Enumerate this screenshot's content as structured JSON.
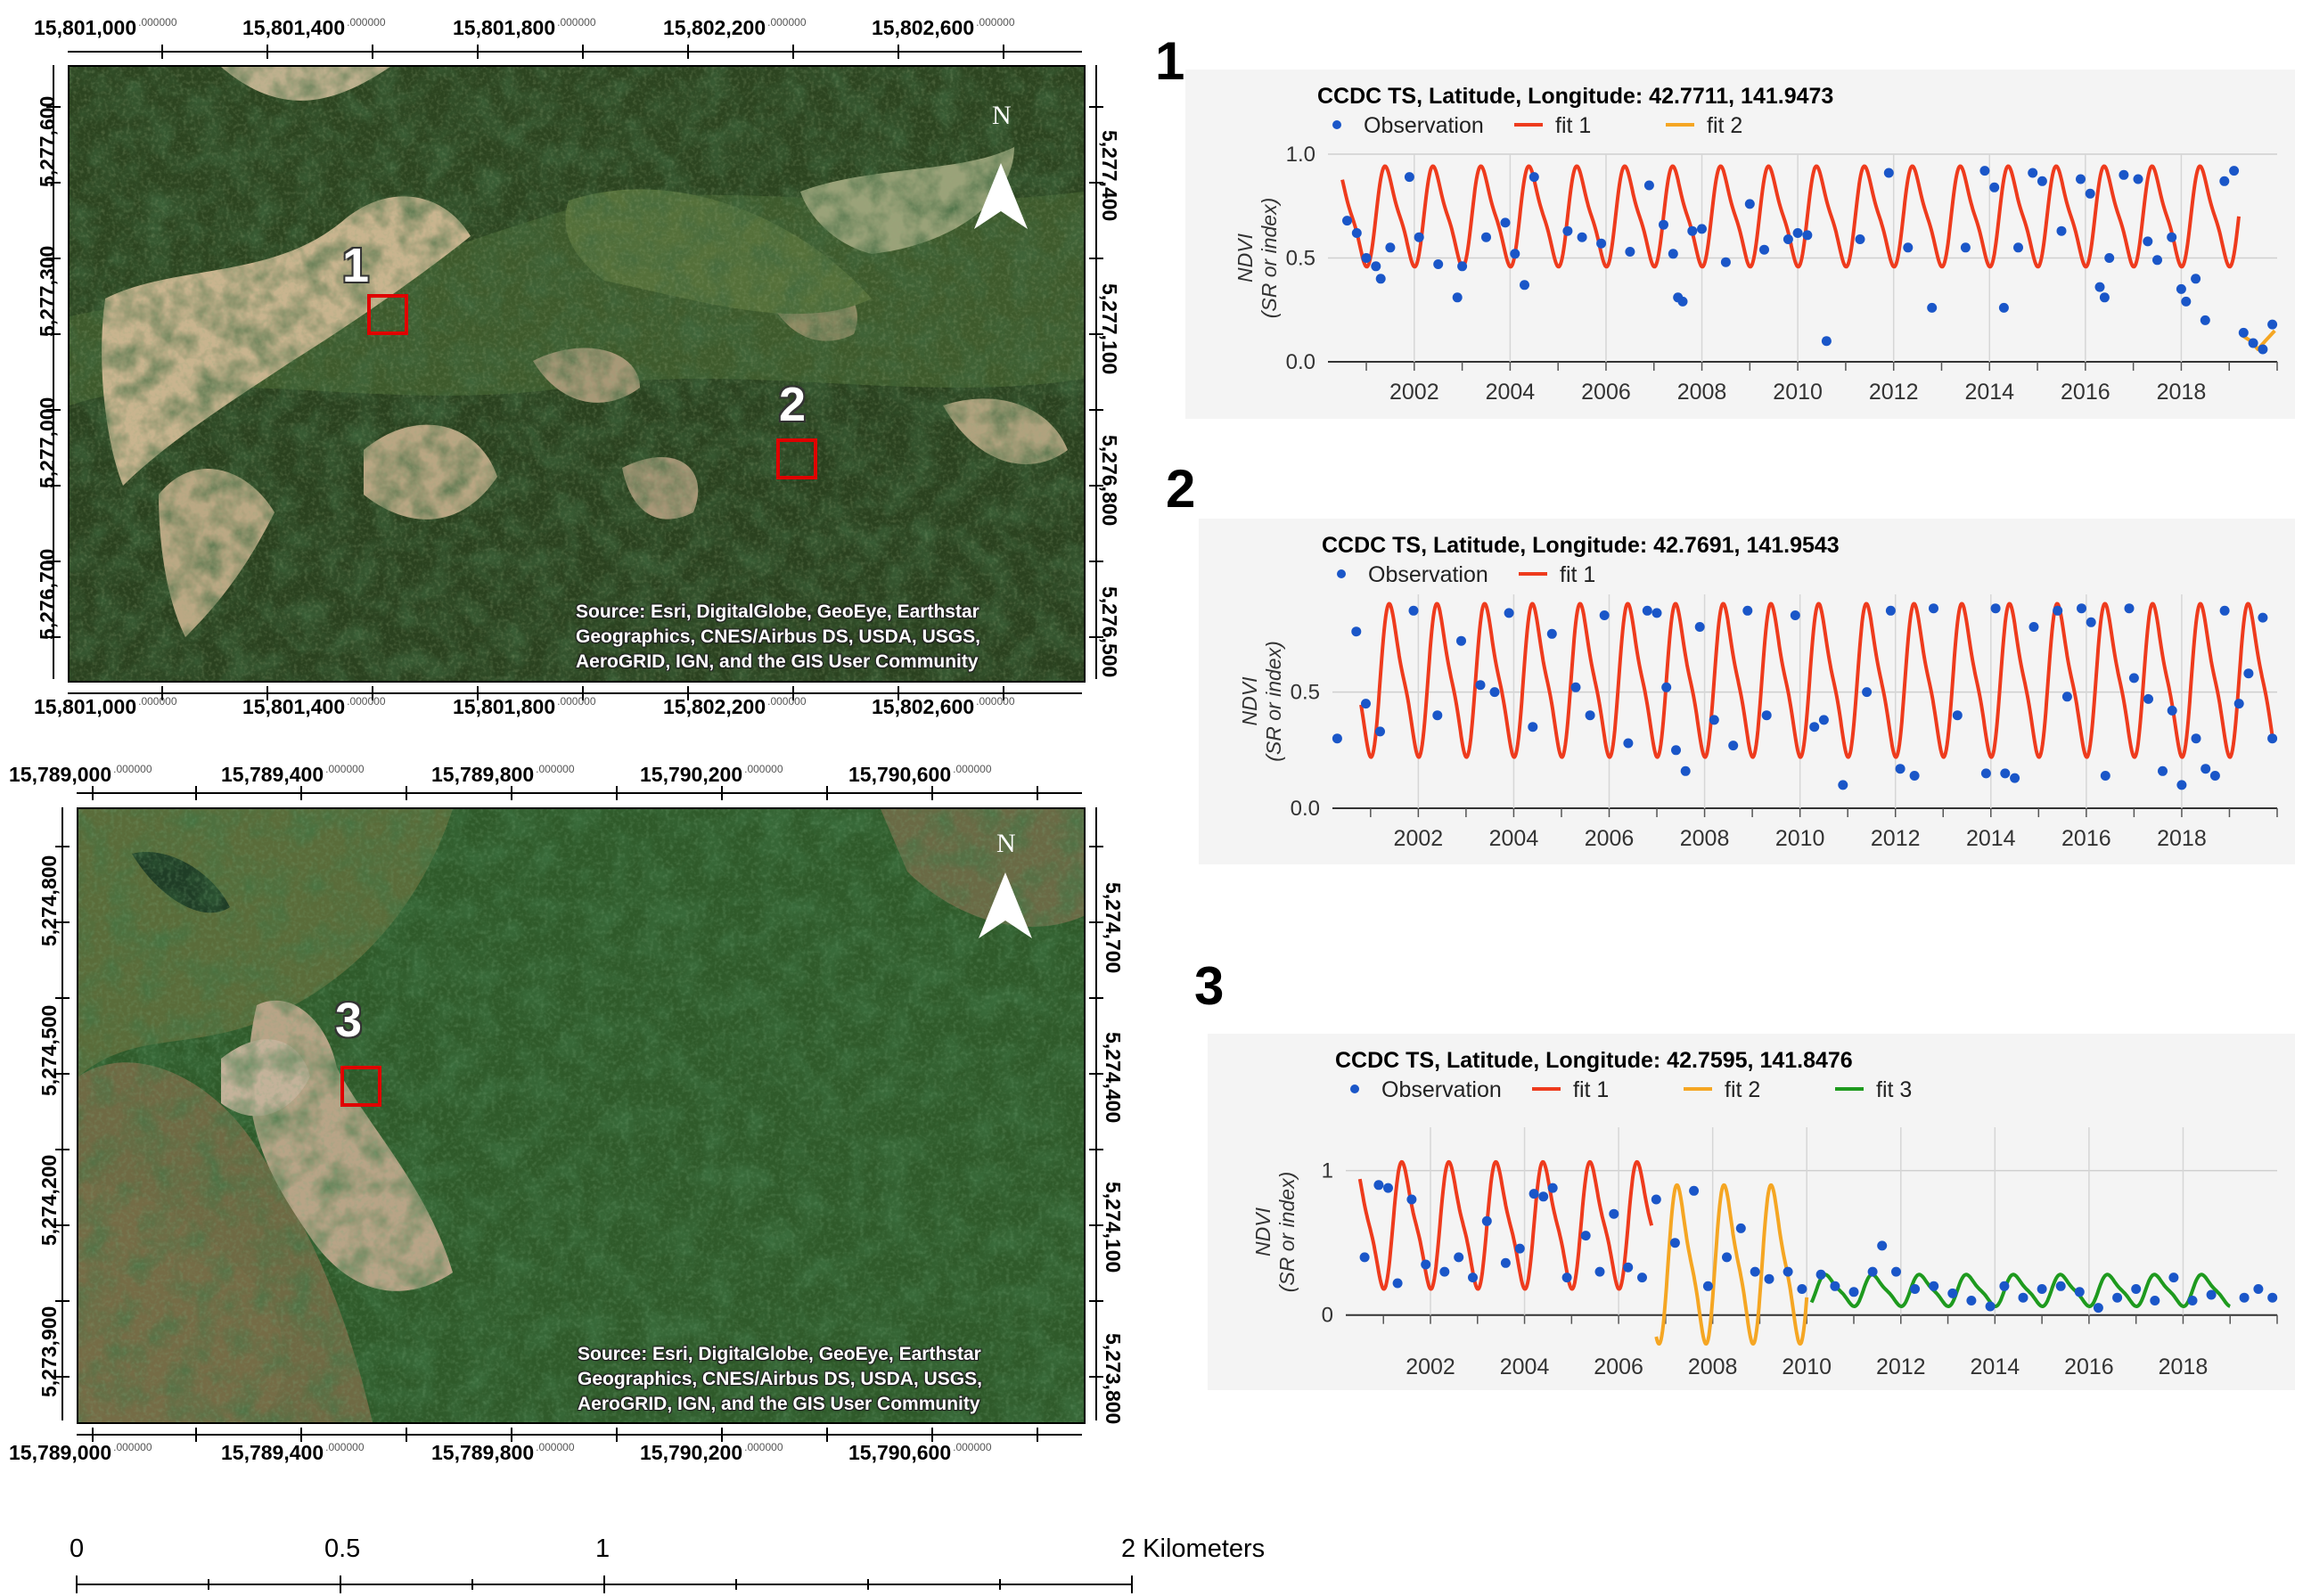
{
  "map1": {
    "x_coords_top": [
      "15,801,000",
      "15,801,400",
      "15,801,800",
      "15,802,200",
      "15,802,600"
    ],
    "x_coords_bottom": [
      "15,801,000",
      "15,801,400",
      "15,801,800",
      "15,802,200",
      "15,802,600"
    ],
    "x_decimal": ".000000",
    "y_coords_left": [
      "5,277,600",
      "5,277,300",
      "5,277,000",
      "5,276,700"
    ],
    "y_coords_right": [
      "5,277,400",
      "5,277,100",
      "5,276,800",
      "5,276,500"
    ],
    "north": "N",
    "site_label": "1",
    "source": [
      "Source: Esri, DigitalGlobe, GeoEye, Earthstar",
      "Geographics, CNES/Airbus DS, USDA, USGS,",
      "AeroGRID, IGN, and the GIS User Community"
    ]
  },
  "map1_site2_label": "2",
  "map2": {
    "x_coords_top": [
      "15,789,000",
      "15,789,400",
      "15,789,800",
      "15,790,200",
      "15,790,600"
    ],
    "x_coords_bottom": [
      "15,789,000",
      "15,789,400",
      "15,789,800",
      "15,790,200",
      "15,790,600"
    ],
    "x_decimal": ".000000",
    "y_coords_left": [
      "5,274,800",
      "5,274,500",
      "5,274,200",
      "5,273,900"
    ],
    "y_coords_right": [
      "5,274,700",
      "5,274,400",
      "5,274,100",
      "5,273,800"
    ],
    "north": "N",
    "site_label": "3",
    "source": [
      "Source: Esri, DigitalGlobe, GeoEye, Earthstar",
      "Geographics, CNES/Airbus DS, USDA, USGS,",
      "AeroGRID, IGN, and the GIS User Community"
    ]
  },
  "scale_bar": {
    "labels": [
      "0",
      "0.5",
      "1",
      "2 Kilometers"
    ]
  },
  "panel_numbers": [
    "1",
    "2",
    "3"
  ],
  "chart_data": [
    {
      "type": "scatter",
      "title": "CCDC TS, Latitude, Longitude: 42.7711, 141.9473",
      "ylabel": "NDVI",
      "ylabel2": "(SR or index)",
      "xlim": [
        2000.2,
        2020.0
      ],
      "ylim": [
        0,
        1
      ],
      "y_ticks": [
        "0.0",
        "0.5",
        "1.0"
      ],
      "y_tick_values": [
        0,
        0.5,
        1.0
      ],
      "x_ticks": [
        "2002",
        "2004",
        "2006",
        "2008",
        "2010",
        "2012",
        "2014",
        "2016",
        "2018"
      ],
      "x_tick_values": [
        2002,
        2004,
        2006,
        2008,
        2010,
        2012,
        2014,
        2016,
        2018
      ],
      "colors": {
        "observation": "#1a56c8",
        "fit1": "#ee3b1d",
        "fit2": "#f5a623"
      },
      "legend": [
        "Observation",
        "fit 1",
        "fit 2"
      ],
      "fits": [
        {
          "name": "fit 1",
          "start": 2000.5,
          "end": 2019.2,
          "mean": 0.7,
          "amp": 0.22,
          "phase": 0.2
        },
        {
          "name": "fit 2",
          "start": 2019.25,
          "end": 2019.95,
          "points": [
            [
              2019.25,
              0.13
            ],
            [
              2019.45,
              0.1
            ],
            [
              2019.6,
              0.06
            ],
            [
              2019.75,
              0.1
            ],
            [
              2019.95,
              0.15
            ]
          ]
        }
      ],
      "observations": [
        [
          2000.6,
          0.68
        ],
        [
          2000.8,
          0.62
        ],
        [
          2001.0,
          0.5
        ],
        [
          2001.2,
          0.46
        ],
        [
          2001.3,
          0.4
        ],
        [
          2001.5,
          0.55
        ],
        [
          2001.9,
          0.89
        ],
        [
          2002.1,
          0.6
        ],
        [
          2002.5,
          0.47
        ],
        [
          2002.9,
          0.31
        ],
        [
          2003.0,
          0.46
        ],
        [
          2003.5,
          0.6
        ],
        [
          2003.9,
          0.67
        ],
        [
          2004.1,
          0.52
        ],
        [
          2004.3,
          0.37
        ],
        [
          2004.5,
          0.89
        ],
        [
          2005.2,
          0.63
        ],
        [
          2005.5,
          0.6
        ],
        [
          2005.9,
          0.57
        ],
        [
          2006.5,
          0.53
        ],
        [
          2006.9,
          0.85
        ],
        [
          2007.2,
          0.66
        ],
        [
          2007.4,
          0.52
        ],
        [
          2007.5,
          0.31
        ],
        [
          2007.6,
          0.29
        ],
        [
          2007.8,
          0.63
        ],
        [
          2008.0,
          0.64
        ],
        [
          2008.5,
          0.48
        ],
        [
          2009.0,
          0.76
        ],
        [
          2009.3,
          0.54
        ],
        [
          2009.8,
          0.59
        ],
        [
          2010.0,
          0.62
        ],
        [
          2010.2,
          0.61
        ],
        [
          2010.6,
          0.1
        ],
        [
          2011.3,
          0.59
        ],
        [
          2011.9,
          0.91
        ],
        [
          2012.3,
          0.55
        ],
        [
          2012.8,
          0.26
        ],
        [
          2013.5,
          0.55
        ],
        [
          2013.9,
          0.92
        ],
        [
          2014.1,
          0.84
        ],
        [
          2014.3,
          0.26
        ],
        [
          2014.6,
          0.55
        ],
        [
          2014.9,
          0.91
        ],
        [
          2015.1,
          0.87
        ],
        [
          2015.5,
          0.63
        ],
        [
          2015.9,
          0.88
        ],
        [
          2016.1,
          0.81
        ],
        [
          2016.3,
          0.36
        ],
        [
          2016.4,
          0.31
        ],
        [
          2016.5,
          0.5
        ],
        [
          2016.8,
          0.9
        ],
        [
          2017.1,
          0.88
        ],
        [
          2017.3,
          0.58
        ],
        [
          2017.5,
          0.49
        ],
        [
          2017.8,
          0.6
        ],
        [
          2018.0,
          0.35
        ],
        [
          2018.1,
          0.29
        ],
        [
          2018.3,
          0.4
        ],
        [
          2018.5,
          0.2
        ],
        [
          2018.9,
          0.87
        ],
        [
          2019.1,
          0.92
        ],
        [
          2019.3,
          0.14
        ],
        [
          2019.5,
          0.09
        ],
        [
          2019.7,
          0.06
        ],
        [
          2019.9,
          0.18
        ]
      ]
    },
    {
      "type": "scatter",
      "title": "CCDC TS, Latitude, Longitude: 42.7691, 141.9543",
      "ylabel": "NDVI",
      "ylabel2": "(SR or index)",
      "xlim": [
        2000.2,
        2020.0
      ],
      "ylim": [
        0,
        0.92
      ],
      "y_ticks": [
        "0.0",
        "0.5"
      ],
      "y_tick_values": [
        0,
        0.5
      ],
      "x_ticks": [
        "2002",
        "2004",
        "2006",
        "2008",
        "2010",
        "2012",
        "2014",
        "2016",
        "2018"
      ],
      "x_tick_values": [
        2002,
        2004,
        2006,
        2008,
        2010,
        2012,
        2014,
        2016,
        2018
      ],
      "colors": {
        "observation": "#1a56c8",
        "fit1": "#ee3b1d"
      },
      "legend": [
        "Observation",
        "fit 1"
      ],
      "fits": [
        {
          "name": "fit 1",
          "start": 2000.8,
          "end": 2019.9,
          "mean": 0.55,
          "amp": 0.3,
          "phase": 0.2
        }
      ],
      "observations": [
        [
          2000.3,
          0.3
        ],
        [
          2000.7,
          0.76
        ],
        [
          2000.9,
          0.45
        ],
        [
          2001.2,
          0.33
        ],
        [
          2001.9,
          0.85
        ],
        [
          2002.4,
          0.4
        ],
        [
          2002.9,
          0.72
        ],
        [
          2003.3,
          0.53
        ],
        [
          2003.6,
          0.5
        ],
        [
          2003.9,
          0.84
        ],
        [
          2004.4,
          0.35
        ],
        [
          2004.8,
          0.75
        ],
        [
          2005.3,
          0.52
        ],
        [
          2005.6,
          0.4
        ],
        [
          2005.9,
          0.83
        ],
        [
          2006.4,
          0.28
        ],
        [
          2006.8,
          0.85
        ],
        [
          2007.0,
          0.84
        ],
        [
          2007.2,
          0.52
        ],
        [
          2007.4,
          0.25
        ],
        [
          2007.6,
          0.16
        ],
        [
          2007.9,
          0.78
        ],
        [
          2008.2,
          0.38
        ],
        [
          2008.6,
          0.27
        ],
        [
          2008.9,
          0.85
        ],
        [
          2009.3,
          0.4
        ],
        [
          2009.9,
          0.83
        ],
        [
          2010.3,
          0.35
        ],
        [
          2010.5,
          0.38
        ],
        [
          2010.9,
          0.1
        ],
        [
          2011.4,
          0.5
        ],
        [
          2011.9,
          0.85
        ],
        [
          2012.1,
          0.17
        ],
        [
          2012.4,
          0.14
        ],
        [
          2012.8,
          0.86
        ],
        [
          2013.3,
          0.4
        ],
        [
          2013.9,
          0.15
        ],
        [
          2014.1,
          0.86
        ],
        [
          2014.3,
          0.15
        ],
        [
          2014.5,
          0.13
        ],
        [
          2014.9,
          0.78
        ],
        [
          2015.4,
          0.85
        ],
        [
          2015.6,
          0.48
        ],
        [
          2015.9,
          0.86
        ],
        [
          2016.1,
          0.8
        ],
        [
          2016.4,
          0.14
        ],
        [
          2016.9,
          0.86
        ],
        [
          2017.0,
          0.56
        ],
        [
          2017.3,
          0.47
        ],
        [
          2017.6,
          0.16
        ],
        [
          2017.8,
          0.42
        ],
        [
          2018.0,
          0.1
        ],
        [
          2018.3,
          0.3
        ],
        [
          2018.5,
          0.17
        ],
        [
          2018.7,
          0.14
        ],
        [
          2018.9,
          0.85
        ],
        [
          2019.2,
          0.45
        ],
        [
          2019.4,
          0.58
        ],
        [
          2019.7,
          0.82
        ],
        [
          2019.9,
          0.3
        ]
      ]
    },
    {
      "type": "scatter",
      "title": "CCDC TS, Latitude, Longitude: 42.7595, 141.8476",
      "ylabel": "NDVI",
      "ylabel2": "(SR or index)",
      "xlim": [
        2000.2,
        2020.0
      ],
      "ylim": [
        -0.15,
        1.3
      ],
      "y_ticks": [
        "0",
        "1"
      ],
      "y_tick_values": [
        0,
        1
      ],
      "x_ticks": [
        "2002",
        "2004",
        "2006",
        "2008",
        "2010",
        "2012",
        "2014",
        "2016",
        "2018"
      ],
      "x_tick_values": [
        2002,
        2004,
        2006,
        2008,
        2010,
        2012,
        2014,
        2016,
        2018
      ],
      "colors": {
        "observation": "#1a56c8",
        "fit1": "#ee3b1d",
        "fit2": "#f5a623",
        "fit3": "#1e9a1e"
      },
      "legend": [
        "Observation",
        "fit 1",
        "fit 2",
        "fit 3"
      ],
      "fits": [
        {
          "name": "fit 1",
          "start": 2000.5,
          "end": 2006.7,
          "mean": 0.62,
          "amp": 0.4,
          "phase": 0.2
        },
        {
          "name": "fit 2",
          "start": 2006.8,
          "end": 2010.0,
          "mean": 0.35,
          "amp": 0.5,
          "phase": 0.05
        },
        {
          "name": "fit 3",
          "start": 2010.1,
          "end": 2019.0,
          "mean": 0.17,
          "amp": 0.1,
          "phase": 0.2
        }
      ],
      "observations": [
        [
          2000.6,
          0.4
        ],
        [
          2000.9,
          0.9
        ],
        [
          2001.1,
          0.88
        ],
        [
          2001.3,
          0.22
        ],
        [
          2001.6,
          0.8
        ],
        [
          2001.9,
          0.35
        ],
        [
          2002.3,
          0.3
        ],
        [
          2002.6,
          0.4
        ],
        [
          2002.9,
          0.26
        ],
        [
          2003.2,
          0.65
        ],
        [
          2003.6,
          0.36
        ],
        [
          2003.9,
          0.46
        ],
        [
          2004.2,
          0.84
        ],
        [
          2004.4,
          0.82
        ],
        [
          2004.6,
          0.88
        ],
        [
          2004.9,
          0.26
        ],
        [
          2005.3,
          0.55
        ],
        [
          2005.6,
          0.3
        ],
        [
          2005.9,
          0.7
        ],
        [
          2006.2,
          0.33
        ],
        [
          2006.5,
          0.26
        ],
        [
          2006.8,
          0.8
        ],
        [
          2007.2,
          0.5
        ],
        [
          2007.6,
          0.86
        ],
        [
          2007.9,
          0.2
        ],
        [
          2008.3,
          0.4
        ],
        [
          2008.6,
          0.6
        ],
        [
          2008.9,
          0.3
        ],
        [
          2009.2,
          0.25
        ],
        [
          2009.6,
          0.3
        ],
        [
          2009.9,
          0.18
        ],
        [
          2010.3,
          0.28
        ],
        [
          2010.6,
          0.2
        ],
        [
          2011.0,
          0.16
        ],
        [
          2011.4,
          0.3
        ],
        [
          2011.6,
          0.48
        ],
        [
          2011.9,
          0.3
        ],
        [
          2012.3,
          0.18
        ],
        [
          2012.7,
          0.2
        ],
        [
          2013.1,
          0.15
        ],
        [
          2013.5,
          0.1
        ],
        [
          2013.9,
          0.06
        ],
        [
          2014.2,
          0.2
        ],
        [
          2014.6,
          0.12
        ],
        [
          2015.0,
          0.18
        ],
        [
          2015.4,
          0.2
        ],
        [
          2015.8,
          0.16
        ],
        [
          2016.2,
          0.05
        ],
        [
          2016.6,
          0.12
        ],
        [
          2017.0,
          0.18
        ],
        [
          2017.4,
          0.1
        ],
        [
          2017.8,
          0.26
        ],
        [
          2018.2,
          0.1
        ],
        [
          2018.6,
          0.14
        ],
        [
          2019.3,
          0.12
        ],
        [
          2019.6,
          0.18
        ],
        [
          2019.9,
          0.12
        ]
      ]
    }
  ]
}
